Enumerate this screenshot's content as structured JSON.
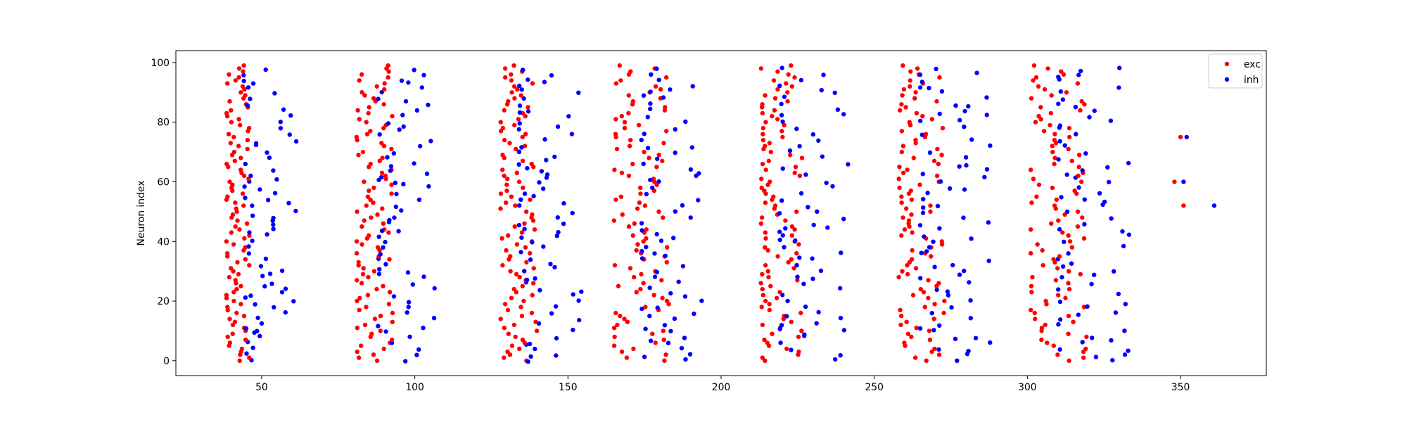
{
  "chart_data": {
    "type": "scatter",
    "title": "",
    "xlabel": "",
    "ylabel": "Neuron index",
    "xlim": [
      22,
      378
    ],
    "ylim": [
      -5,
      104
    ],
    "xticks": [
      50,
      100,
      150,
      200,
      250,
      300,
      350
    ],
    "yticks": [
      0,
      20,
      40,
      60,
      80,
      100
    ],
    "grid": false,
    "legend_position": "top-right",
    "bursts": [
      {
        "exc_lo": 38.5,
        "exc_hi": 46,
        "inh_lo": 44,
        "inh_hi": 62
      },
      {
        "exc_lo": 81,
        "exc_hi": 93,
        "inh_lo": 88,
        "inh_hi": 107
      },
      {
        "exc_lo": 128,
        "exc_hi": 140,
        "inh_lo": 134,
        "inh_hi": 155
      },
      {
        "exc_lo": 165,
        "exc_hi": 183,
        "inh_lo": 174,
        "inh_hi": 195
      },
      {
        "exc_lo": 213,
        "exc_hi": 227,
        "inh_lo": 219,
        "inh_hi": 242
      },
      {
        "exc_lo": 258,
        "exc_hi": 273,
        "inh_lo": 265,
        "inh_hi": 288
      },
      {
        "exc_lo": 301,
        "exc_hi": 320,
        "inh_lo": 310,
        "inh_hi": 334
      }
    ],
    "series": [
      {
        "name": "exc",
        "color": "#ff0000",
        "extra_points": [
          [
            348,
            60
          ],
          [
            350,
            75
          ],
          [
            351,
            52
          ]
        ]
      },
      {
        "name": "inh",
        "color": "#0000ff",
        "extra_points": [
          [
            351,
            60
          ],
          [
            352,
            75
          ],
          [
            361,
            52
          ]
        ]
      }
    ]
  }
}
